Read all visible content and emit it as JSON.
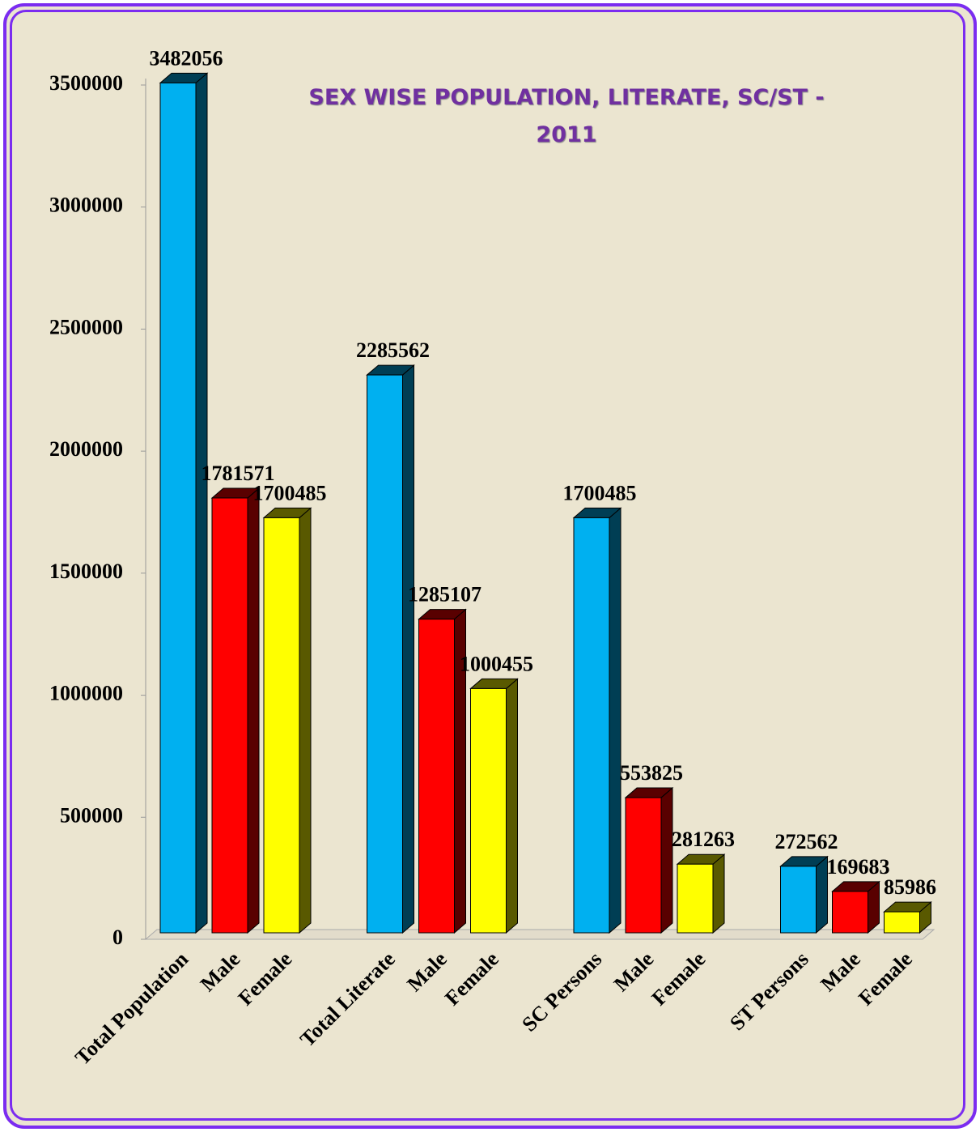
{
  "chart_data": {
    "type": "bar3d",
    "title": "SEX WISE POPULATION, LITERATE, SC/ST - 2011",
    "categories": [
      "Total Population",
      "Male",
      "Female",
      "Total Literate",
      "Male",
      "Female",
      "SC Persons",
      "Male",
      "Female",
      "ST Persons",
      "Male",
      "Female"
    ],
    "values": [
      3482056,
      1781571,
      1700485,
      2285562,
      1285107,
      1000455,
      1700485,
      553825,
      281263,
      272562,
      169683,
      85986
    ],
    "colors": [
      "#00b0f0",
      "#ff0000",
      "#ffff00",
      "#00b0f0",
      "#ff0000",
      "#ffff00",
      "#00b0f0",
      "#ff0000",
      "#ffff00",
      "#00b0f0",
      "#ff0000",
      "#ffff00"
    ],
    "ylim": [
      0,
      3500000
    ],
    "yticks": [
      0,
      500000,
      1000000,
      1500000,
      2000000,
      2500000,
      3000000,
      3500000
    ],
    "grid": false
  }
}
